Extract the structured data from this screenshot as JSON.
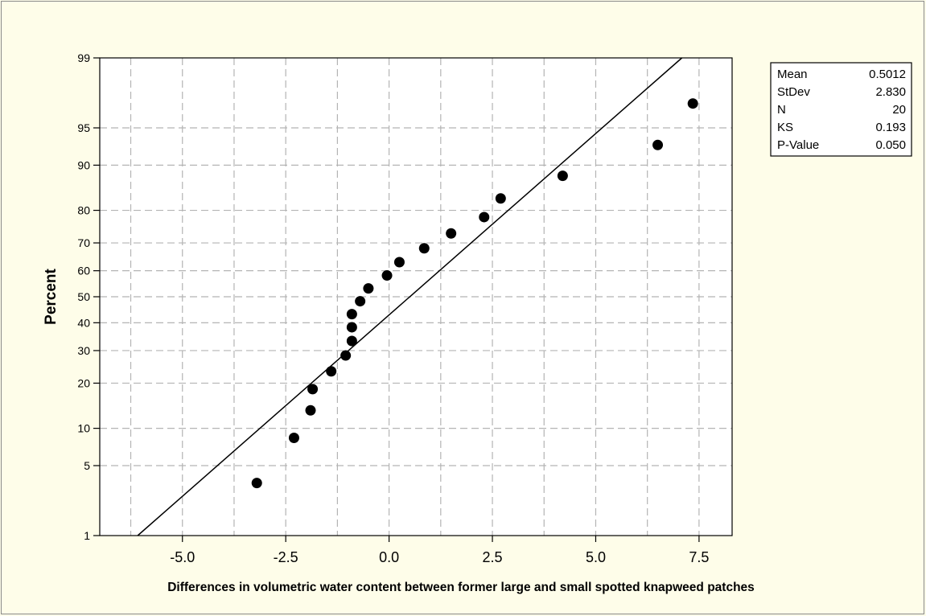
{
  "chart_data": {
    "type": "scatter",
    "title": "",
    "xlabel": "Differences in volumetric water content between former large and small spotted knapweed patches",
    "ylabel": "Percent",
    "y_scale": "normal-probability",
    "xlim": [
      -7.0,
      8.3
    ],
    "ylim": [
      1,
      99
    ],
    "grid": true,
    "x_ticks": [
      -5.0,
      -2.5,
      0.0,
      2.5,
      5.0,
      7.5
    ],
    "x_tick_labels": [
      "-5.0",
      "-2.5",
      "0.0",
      "2.5",
      "5.0",
      "7.5"
    ],
    "x_minor_gridlines": [
      -6.25,
      -3.75,
      -1.25,
      1.25,
      3.75,
      6.25
    ],
    "y_ticks": [
      1,
      5,
      10,
      20,
      30,
      40,
      50,
      60,
      70,
      80,
      90,
      95,
      99
    ],
    "y_tick_labels": [
      "1",
      "5",
      "10",
      "20",
      "30",
      "40",
      "50",
      "60",
      "70",
      "80",
      "90",
      "95",
      "99"
    ],
    "points": [
      {
        "x": -3.2,
        "y": 3.48
      },
      {
        "x": -2.3,
        "y": 8.46
      },
      {
        "x": -1.9,
        "y": 13.43
      },
      {
        "x": -1.85,
        "y": 18.41
      },
      {
        "x": -1.4,
        "y": 23.38
      },
      {
        "x": -1.05,
        "y": 28.36
      },
      {
        "x": -0.9,
        "y": 33.33
      },
      {
        "x": -0.9,
        "y": 38.31
      },
      {
        "x": -0.9,
        "y": 43.28
      },
      {
        "x": -0.7,
        "y": 48.26
      },
      {
        "x": -0.5,
        "y": 53.23
      },
      {
        "x": -0.05,
        "y": 58.21
      },
      {
        "x": 0.25,
        "y": 63.18
      },
      {
        "x": 0.85,
        "y": 68.16
      },
      {
        "x": 1.5,
        "y": 73.13
      },
      {
        "x": 2.3,
        "y": 78.11
      },
      {
        "x": 2.7,
        "y": 83.08
      },
      {
        "x": 4.2,
        "y": 88.06
      },
      {
        "x": 6.5,
        "y": 93.03
      },
      {
        "x": 7.35,
        "y": 97.01
      }
    ],
    "fit_line": {
      "mean": 0.5012,
      "stdev": 2.83
    },
    "legend_position": "top-right",
    "stats_table": [
      {
        "label": "Mean",
        "value": "0.5012"
      },
      {
        "label": "StDev",
        "value": "2.830"
      },
      {
        "label": "N",
        "value": "20"
      },
      {
        "label": "KS",
        "value": "0.193"
      },
      {
        "label": "P-Value",
        "value": "0.050"
      }
    ],
    "colors": {
      "background": "#fefde9",
      "plot_background": "#ffffff",
      "grid": "#b4b4b4",
      "marker": "#000000",
      "line": "#000000"
    }
  }
}
